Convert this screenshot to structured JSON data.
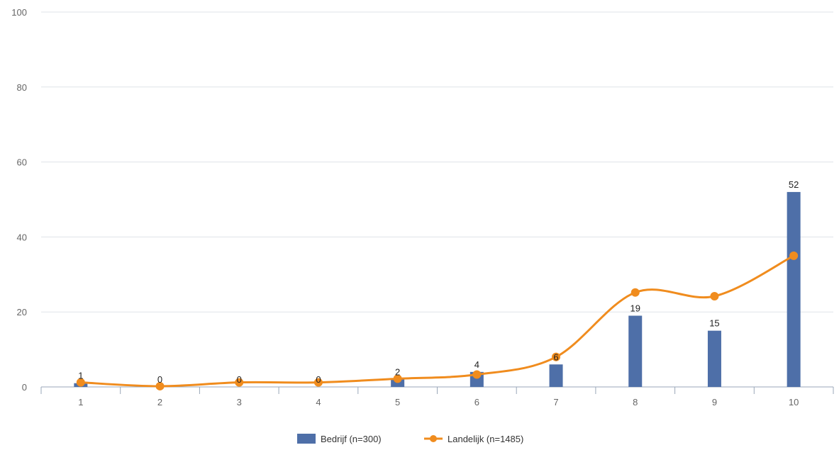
{
  "chart_data": {
    "type": "bar",
    "categories": [
      "1",
      "2",
      "3",
      "4",
      "5",
      "6",
      "7",
      "8",
      "9",
      "10"
    ],
    "title": "",
    "xlabel": "",
    "ylabel": "",
    "ylim": [
      0,
      100
    ],
    "yticks": [
      "0",
      "20",
      "40",
      "60",
      "80",
      "100"
    ],
    "grid": true,
    "legend_position": "bottom",
    "series": [
      {
        "name": "Bedrijf (n=300)",
        "type": "bar",
        "color": "#4e6fa8",
        "values": [
          1,
          0,
          0,
          0,
          2,
          4,
          6,
          19,
          15,
          52
        ],
        "data_labels": [
          "1",
          "0",
          "0",
          "0",
          "2",
          "4",
          "6",
          "19",
          "15",
          "52"
        ]
      },
      {
        "name": "Landelijk (n=1485)",
        "type": "line",
        "smooth": true,
        "color": "#f08c1e",
        "values": [
          1.2,
          0.2,
          1.2,
          1.2,
          2.2,
          3.3,
          8,
          25.2,
          24.2,
          35
        ]
      }
    ]
  }
}
